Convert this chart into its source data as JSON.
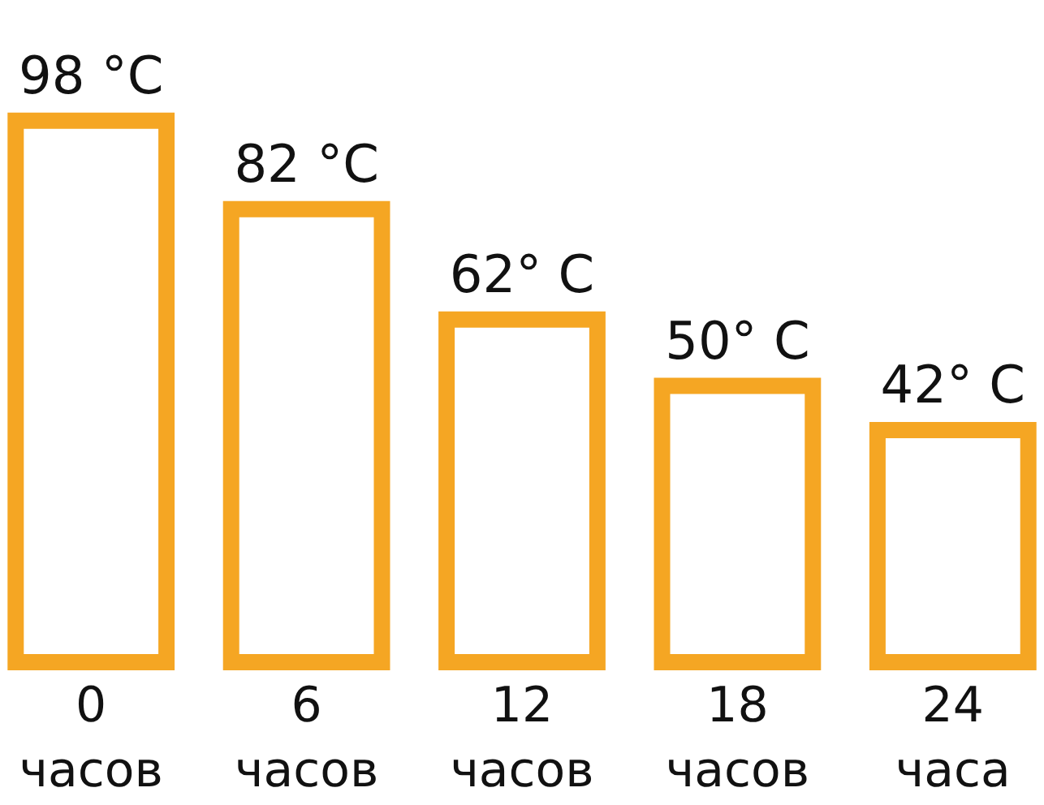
{
  "chart_data": {
    "type": "bar",
    "categories": [
      "0 часов",
      "6 часов",
      "12 часов",
      "18 часов",
      "24 часа"
    ],
    "values": [
      98,
      82,
      62,
      50,
      42
    ],
    "color": "#f5a623",
    "value_labels": [
      "98 °C",
      "82 °C",
      "62° C",
      "50° C",
      "42° C"
    ]
  }
}
